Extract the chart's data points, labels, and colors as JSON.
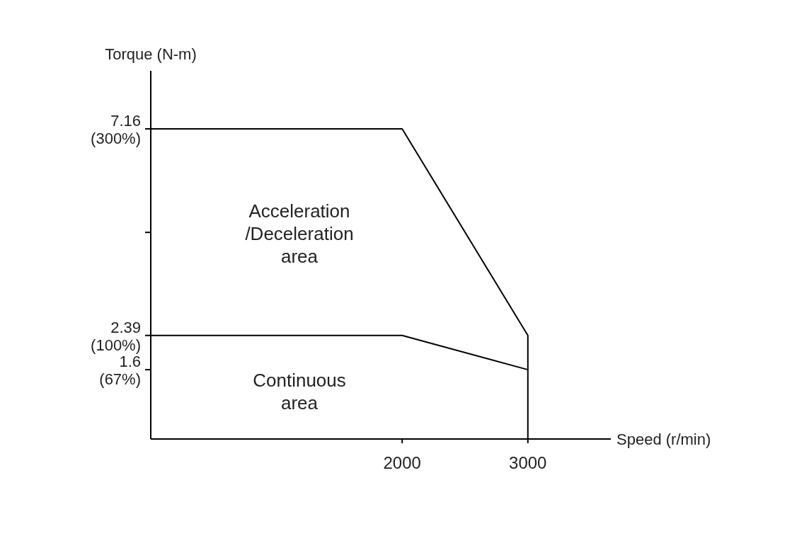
{
  "chart_data": {
    "type": "line",
    "xlabel": "Speed (r/min)",
    "ylabel": "Torque (N-m)",
    "xlim": [
      0,
      3660
    ],
    "ylim": [
      0,
      8.5
    ],
    "xticks": [
      2000,
      3000
    ],
    "yticks": [
      1.6,
      2.39,
      {
        "value": 4.77,
        "label": null
      },
      7.16
    ],
    "y2lim": [
      0,
      356
    ],
    "y2ticks": [
      {
        "value": 67,
        "label": "(67%)"
      },
      {
        "value": 100,
        "label": "(100%)"
      },
      {
        "value": 300,
        "label": "(300%)"
      }
    ],
    "series": [
      {
        "color": "#000000",
        "x": [
          0,
          2000,
          3000,
          3000
        ],
        "values": [
          7.16,
          7.16,
          2.39,
          0
        ]
      },
      {
        "color": "#000000",
        "x": [
          0,
          2000,
          3000
        ],
        "values": [
          2.39,
          2.39,
          1.6
        ]
      }
    ],
    "annotations": [
      "Acceleration\n/Deceleration\narea",
      "Continuous\narea"
    ],
    "grid": false,
    "marker": "none",
    "line_style": "solid"
  }
}
